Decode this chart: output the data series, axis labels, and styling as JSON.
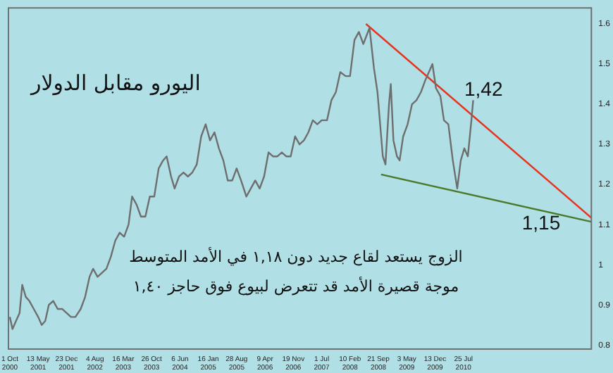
{
  "chart_data": {
    "type": "line",
    "title": "اليورو مقابل الدولار",
    "annotations": [
      {
        "text": "1,42",
        "x": "2010-08-01",
        "y": 1.41
      },
      "1,15",
      "الزوج يستعد لقاع جديد دون ١,١٨ في الأمد المتوسط",
      "موجة قصيرة الأمد قد تتعرض لبيوع فوق حاجز ١,٤٠"
    ],
    "x": [
      "2000-10-01",
      "2000-10-22",
      "2000-11-19",
      "2000-12-17",
      "2001-01-07",
      "2001-02-04",
      "2001-03-04",
      "2001-04-08",
      "2001-05-13",
      "2001-06-10",
      "2001-07-08",
      "2001-08-05",
      "2001-09-09",
      "2001-10-14",
      "2001-11-18",
      "2001-12-23",
      "2002-01-27",
      "2002-03-03",
      "2002-04-14",
      "2002-05-19",
      "2002-06-23",
      "2002-07-21",
      "2002-08-25",
      "2002-09-29",
      "2002-11-03",
      "2002-12-08",
      "2003-01-12",
      "2003-02-16",
      "2003-03-23",
      "2003-04-27",
      "2003-05-25",
      "2003-06-29",
      "2003-08-03",
      "2003-09-07",
      "2003-10-12",
      "2003-11-16",
      "2003-12-21",
      "2004-01-25",
      "2004-02-22",
      "2004-03-28",
      "2004-04-25",
      "2004-05-30",
      "2004-07-04",
      "2004-08-08",
      "2004-09-12",
      "2004-10-17",
      "2004-11-21",
      "2004-12-26",
      "2005-01-30",
      "2005-03-06",
      "2005-04-10",
      "2005-05-15",
      "2005-06-19",
      "2005-07-24",
      "2005-08-28",
      "2005-10-02",
      "2005-11-13",
      "2005-12-18",
      "2006-01-22",
      "2006-02-26",
      "2006-04-02",
      "2006-05-07",
      "2006-06-11",
      "2006-07-16",
      "2006-08-20",
      "2006-09-24",
      "2006-10-29",
      "2006-12-03",
      "2007-01-07",
      "2007-02-11",
      "2007-03-18",
      "2007-04-22",
      "2007-05-27",
      "2007-07-01",
      "2007-08-12",
      "2007-09-16",
      "2007-10-21",
      "2007-11-25",
      "2008-01-06",
      "2008-02-10",
      "2008-03-16",
      "2008-04-20",
      "2008-05-25",
      "2008-07-13",
      "2008-08-17",
      "2008-09-14",
      "2008-10-26",
      "2008-11-16",
      "2008-12-14",
      "2008-12-28",
      "2009-01-18",
      "2009-02-15",
      "2009-03-08",
      "2009-04-05",
      "2009-05-10",
      "2009-06-14",
      "2009-07-19",
      "2009-08-23",
      "2009-09-27",
      "2009-10-25",
      "2009-11-22",
      "2009-12-20",
      "2010-01-24",
      "2010-02-21",
      "2010-03-28",
      "2010-05-02",
      "2010-06-06",
      "2010-07-04",
      "2010-08-01",
      "2010-08-29",
      "2010-09-26",
      "2010-10-10"
    ],
    "series": [
      {
        "color": "#6e6e6e",
        "values": [
          0.87,
          0.84,
          0.86,
          0.88,
          0.95,
          0.92,
          0.91,
          0.89,
          0.87,
          0.85,
          0.86,
          0.9,
          0.91,
          0.89,
          0.89,
          0.88,
          0.87,
          0.87,
          0.89,
          0.92,
          0.97,
          0.99,
          0.97,
          0.98,
          0.99,
          1.02,
          1.06,
          1.08,
          1.07,
          1.1,
          1.17,
          1.15,
          1.12,
          1.12,
          1.17,
          1.17,
          1.24,
          1.26,
          1.27,
          1.22,
          1.19,
          1.22,
          1.23,
          1.22,
          1.23,
          1.25,
          1.32,
          1.35,
          1.31,
          1.33,
          1.29,
          1.26,
          1.21,
          1.21,
          1.24,
          1.21,
          1.17,
          1.19,
          1.21,
          1.19,
          1.22,
          1.28,
          1.27,
          1.27,
          1.28,
          1.27,
          1.27,
          1.32,
          1.3,
          1.31,
          1.33,
          1.36,
          1.35,
          1.36,
          1.36,
          1.41,
          1.43,
          1.48,
          1.47,
          1.47,
          1.56,
          1.58,
          1.55,
          1.59,
          1.49,
          1.43,
          1.27,
          1.25,
          1.4,
          1.45,
          1.31,
          1.27,
          1.26,
          1.32,
          1.35,
          1.4,
          1.41,
          1.43,
          1.46,
          1.48,
          1.5,
          1.44,
          1.42,
          1.36,
          1.35,
          1.26,
          1.19,
          1.26,
          1.29,
          1.27,
          1.36,
          1.41
        ]
      },
      {
        "type": "line",
        "color": "#e8321e",
        "x": [
          "2008-06-15",
          "2013-05-01"
        ],
        "values": [
          1.6,
          1.117
        ]
      },
      {
        "type": "line",
        "color": "#4a7a2a",
        "x": [
          "2008-10-12",
          "2013-05-01"
        ],
        "values": [
          1.225,
          1.107
        ]
      }
    ],
    "xlim": [
      "2000-09-20",
      "2013-05-01"
    ],
    "ylim": [
      0.79,
      1.64
    ],
    "xticks": [
      {
        "value": "2000-10-01",
        "label": "1 Oct 2000"
      },
      {
        "value": "2001-05-13",
        "label": "13 May 2001"
      },
      {
        "value": "2001-12-23",
        "label": "23 Dec 2001"
      },
      {
        "value": "2002-08-04",
        "label": "4 Aug 2002"
      },
      {
        "value": "2003-03-16",
        "label": "16 Mar 2003"
      },
      {
        "value": "2003-10-26",
        "label": "26 Oct 2003"
      },
      {
        "value": "2004-06-06",
        "label": "6 Jun 2004"
      },
      {
        "value": "2005-01-16",
        "label": "16 Jan 2005"
      },
      {
        "value": "2005-08-28",
        "label": "28 Aug 2005"
      },
      {
        "value": "2006-04-09",
        "label": "9 Apr 2006"
      },
      {
        "value": "2006-11-19",
        "label": "19 Nov 2006"
      },
      {
        "value": "2007-07-01",
        "label": "1 Jul 2007"
      },
      {
        "value": "2008-02-10",
        "label": "10 Feb 2008"
      },
      {
        "value": "2008-09-21",
        "label": "21 Sep 2008"
      },
      {
        "value": "2009-05-03",
        "label": "3 May 2009"
      },
      {
        "value": "2009-12-13",
        "label": "13 Dec 2009"
      },
      {
        "value": "2010-07-25",
        "label": "25 Jul 2010"
      }
    ],
    "yticks": [
      0.8,
      0.9,
      1.0,
      1.1,
      1.2,
      1.3,
      1.4,
      1.5,
      1.6
    ],
    "marker": "none",
    "line_style": "solid",
    "grid": false,
    "legend": false
  }
}
